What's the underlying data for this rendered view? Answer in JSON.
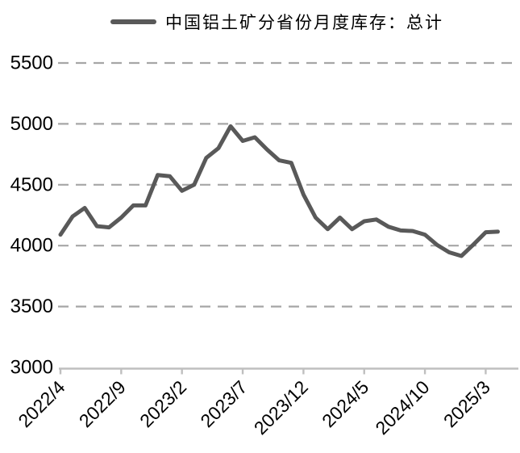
{
  "legend": {
    "series_label": "中国铝土矿分省份月度库存：总计"
  },
  "chart_data": {
    "type": "line",
    "title": "中国铝土矿分省份月度库存：总计",
    "legend_position": "top",
    "grid": "horizontal-dashed",
    "ylim": [
      3000,
      5500
    ],
    "y_ticks": [
      3000,
      3500,
      4000,
      4500,
      5000,
      5500
    ],
    "x_tick_labels": [
      "2022/4",
      "2022/9",
      "2023/2",
      "2023/7",
      "2023/12",
      "2024/5",
      "2024/10",
      "2025/3"
    ],
    "categories": [
      "2022/4",
      "2022/5",
      "2022/6",
      "2022/7",
      "2022/8",
      "2022/9",
      "2022/10",
      "2022/11",
      "2022/12",
      "2023/1",
      "2023/2",
      "2023/3",
      "2023/4",
      "2023/5",
      "2023/6",
      "2023/7",
      "2023/8",
      "2023/9",
      "2023/10",
      "2023/11",
      "2023/12",
      "2024/1",
      "2024/2",
      "2024/3",
      "2024/4",
      "2024/5",
      "2024/6",
      "2024/7",
      "2024/8",
      "2024/9",
      "2024/10",
      "2024/11",
      "2024/12",
      "2025/1",
      "2025/2",
      "2025/3",
      "2025/4"
    ],
    "series": [
      {
        "name": "中国铝土矿分省份月度库存：总计",
        "values": [
          4090,
          4240,
          4310,
          4160,
          4150,
          4230,
          4330,
          4330,
          4580,
          4570,
          4450,
          4500,
          4720,
          4800,
          4980,
          4860,
          4890,
          4790,
          4700,
          4680,
          4420,
          4230,
          4135,
          4230,
          4135,
          4200,
          4215,
          4155,
          4125,
          4120,
          4090,
          4005,
          3945,
          3915,
          4010,
          4110,
          4115
        ]
      }
    ],
    "colors": {
      "series": "#595959",
      "grid": "#a6a6a6",
      "axis": "#bfbfbf",
      "text": "#000000"
    }
  }
}
